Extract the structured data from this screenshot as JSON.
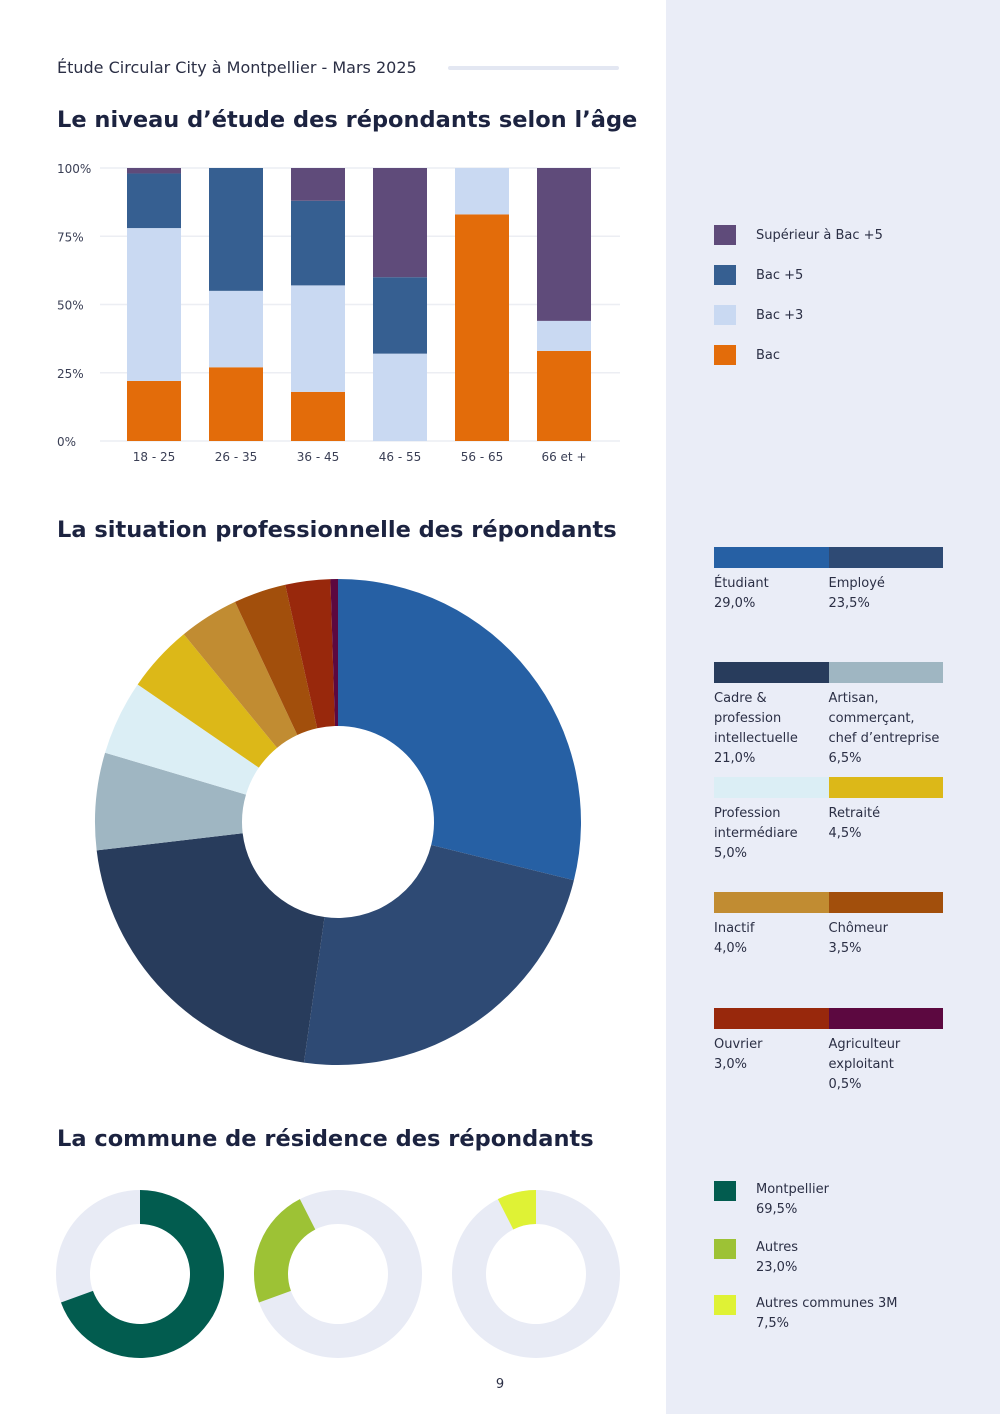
{
  "header": {
    "title": "Étude Circular City à Montpellier - Mars 2025"
  },
  "page_number": "9",
  "chart_data": [
    {
      "type": "bar",
      "stacked": true,
      "title": "Le niveau d’étude des répondants selon l’âge",
      "categories": [
        "18 - 25",
        "26 - 35",
        "36 - 45",
        "46 - 55",
        "56 - 65",
        "66 et +"
      ],
      "yticks": [
        "0%",
        "25%",
        "50%",
        "75%",
        "100%"
      ],
      "ylim": [
        0,
        100
      ],
      "grid": true,
      "legend_position": "right",
      "series": [
        {
          "name": "Bac",
          "color": "#e36c0a",
          "values": [
            22,
            27,
            18,
            0,
            83,
            33
          ]
        },
        {
          "name": "Bac +3",
          "color": "#c9d9f2",
          "values": [
            56,
            28,
            39,
            32,
            17,
            11
          ]
        },
        {
          "name": "Bac +5",
          "color": "#365f91",
          "values": [
            20,
            45,
            31,
            28,
            0,
            0
          ]
        },
        {
          "name": "Supérieur à Bac +5",
          "color": "#5f4b7a",
          "values": [
            2,
            0,
            12,
            40,
            0,
            56
          ]
        }
      ]
    },
    {
      "type": "pie",
      "donut": true,
      "title": "La situation professionnelle des répondants",
      "legend_position": "right",
      "slices": [
        {
          "name": "Étudiant",
          "value": 29.0,
          "label": "29,0%",
          "color": "#2660a4"
        },
        {
          "name": "Employé",
          "value": 23.5,
          "label": "23,5%",
          "color": "#2e4a74"
        },
        {
          "name": "Cadre & profession intellectuelle",
          "value": 21.0,
          "label": "21,0%",
          "color": "#283c5c"
        },
        {
          "name": "Artisan, commerçant, chef d’entreprise",
          "value": 6.5,
          "label": "6,5%",
          "color": "#9fb6c2"
        },
        {
          "name": "Profession intermédiare",
          "value": 5.0,
          "label": "5,0%",
          "color": "#dbeef5"
        },
        {
          "name": "Retraité",
          "value": 4.5,
          "label": "4,5%",
          "color": "#dcb818"
        },
        {
          "name": "Inactif",
          "value": 4.0,
          "label": "4,0%",
          "color": "#c18c32"
        },
        {
          "name": "Chômeur",
          "value": 3.5,
          "label": "3,5%",
          "color": "#a24f0c"
        },
        {
          "name": "Ouvrier",
          "value": 3.0,
          "label": "3,0%",
          "color": "#98280c"
        },
        {
          "name": "Agriculteur exploitant",
          "value": 0.5,
          "label": "0,5%",
          "color": "#5c0840"
        }
      ]
    },
    {
      "type": "pie",
      "donut": true,
      "title": "La commune de résidence des répondants",
      "legend_position": "right",
      "track_color": "#e8ebf5",
      "slices": [
        {
          "name": "Montpellier",
          "value": 69.5,
          "label": "69,5%",
          "color": "#025c4f"
        },
        {
          "name": "Autres",
          "value": 23.0,
          "label": "23,0%",
          "color": "#9dc235"
        },
        {
          "name": "Autres communes 3M",
          "value": 7.5,
          "label": "7,5%",
          "color": "#dff235"
        }
      ]
    }
  ]
}
